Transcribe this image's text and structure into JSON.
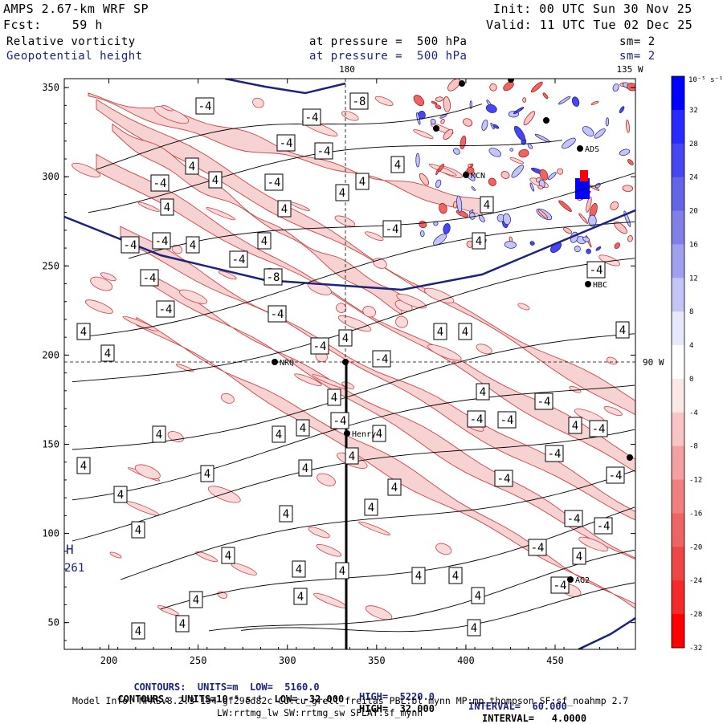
{
  "header": {
    "model": "AMPS 2.67-km WRF SP",
    "init": "Init: 00 UTC Sun 30 Nov 25",
    "fcst": "Fcst:    59 h",
    "valid": "Valid: 11 UTC Tue 02 Dec 25",
    "field1": "Relative vorticity",
    "field1_level": "at pressure =  500 hPa",
    "field1_sm": "sm= 2",
    "field2": "Geopotential height",
    "field2_level": "at pressure =  500 hPa",
    "field2_sm": "sm= 2",
    "top_lon_180": "180",
    "top_lon_135w": "135 W",
    "right_lat": "90 W"
  },
  "colorbar": {
    "unit_label": "10⁻⁵ s⁻¹",
    "ticks": [
      "32",
      "28",
      "24",
      "20",
      "16",
      "12",
      "8",
      "4",
      "0",
      "-4",
      "-8",
      "-12",
      "-16",
      "-20",
      "-24",
      "-28",
      "-32"
    ],
    "colors": [
      "#0000ff",
      "#2a2aff",
      "#4646f2",
      "#6464e6",
      "#8080e8",
      "#a0a0ee",
      "#c4c4f6",
      "#e8e8fc",
      "#ffffff",
      "#fde8e8",
      "#f8c4c4",
      "#f4a0a0",
      "#f08080",
      "#ec6464",
      "#ee4646",
      "#f42a2a",
      "#ff0000"
    ]
  },
  "stations": [
    "NRQ",
    "Henry",
    "AG2",
    "HBC",
    "MCN",
    "ADS"
  ],
  "low_label": {
    "letter": "H",
    "value": "261"
  },
  "chart_data": {
    "type": "contour",
    "xlim": [
      175,
      495
    ],
    "ylim": [
      35,
      355
    ],
    "x_ticks": [
      "200",
      "250",
      "300",
      "350",
      "400",
      "450"
    ],
    "y_ticks": [
      "350",
      "300",
      "250",
      "200",
      "150",
      "100",
      "50"
    ],
    "vorticity_labels": [
      "4",
      "-4",
      "-8"
    ],
    "geopotential_height": {
      "units": "m",
      "low": 5160.0,
      "high": 5220.0,
      "interval": 60.0
    },
    "vorticity": {
      "units": "10^-5 s^-1",
      "low": -32.0,
      "high": 32.0,
      "interval": 4.0
    }
  },
  "footer": {
    "line1_parts": [
      "CONTOURS:  UNITS=m  LOW=  5160.0",
      "HIGH=  5220.0",
      "INTERVAL=  60.000"
    ],
    "line2_parts": [
      "CONTOURS:  UNITS=10⁻⁵ s⁻¹  LOW= -32.000",
      "HIGH=  32.000",
      "INTERVAL=   4.0000"
    ],
    "model_info": "Model Info: MPASv8.2.3-194-gf29cd82c CU:cu_grell_freitas PBL:bl_mynn MP:mp_thompson SF:sf_noahmp 2.7",
    "model_info2": "LW:rrtmg_lw SW:rrtmg_sw SFLAY:sf_mynn"
  }
}
